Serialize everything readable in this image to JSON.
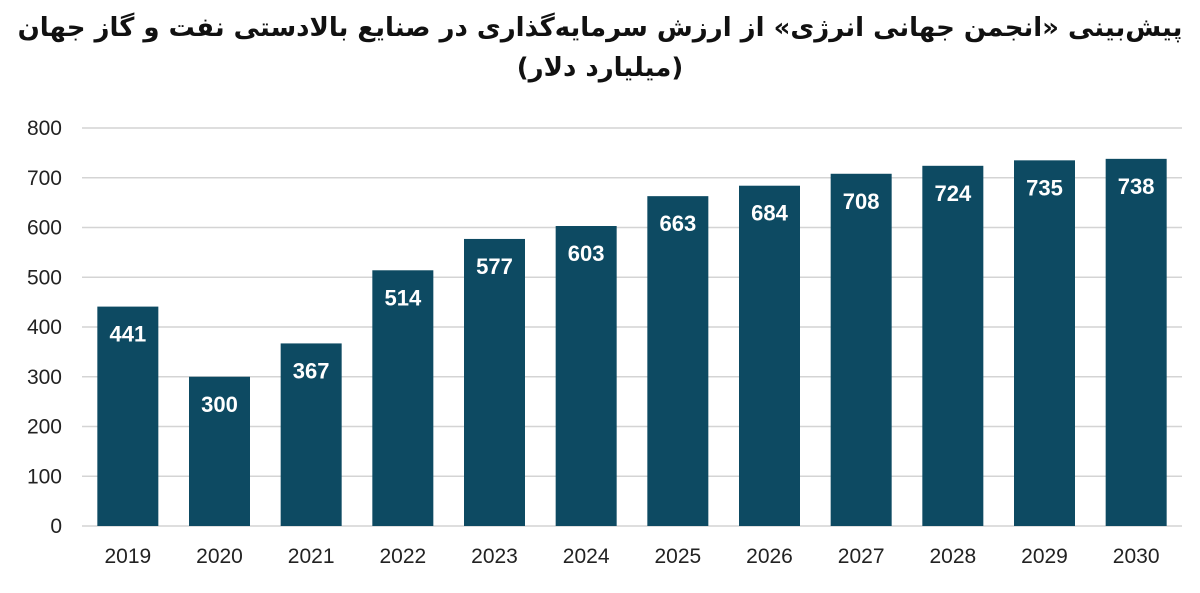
{
  "chart_data": {
    "type": "bar",
    "title": "پیش‌بینی «انجمن جهانی انرژی» از ارزش سرمایه‌گذاری در صنایع بالادستی نفت و گاز جهان",
    "subtitle": "(میلیارد دلار)",
    "categories": [
      "2019",
      "2020",
      "2021",
      "2022",
      "2023",
      "2024",
      "2025",
      "2026",
      "2027",
      "2028",
      "2029",
      "2030"
    ],
    "values": [
      441,
      300,
      367,
      514,
      577,
      603,
      663,
      684,
      708,
      724,
      735,
      738
    ],
    "ylim": [
      0,
      800
    ],
    "yticks": [
      0,
      100,
      200,
      300,
      400,
      500,
      600,
      700,
      800
    ],
    "grid": true,
    "legend": "none",
    "bar_color": "#0d4a62",
    "grid_color": "#d4d4d4"
  }
}
